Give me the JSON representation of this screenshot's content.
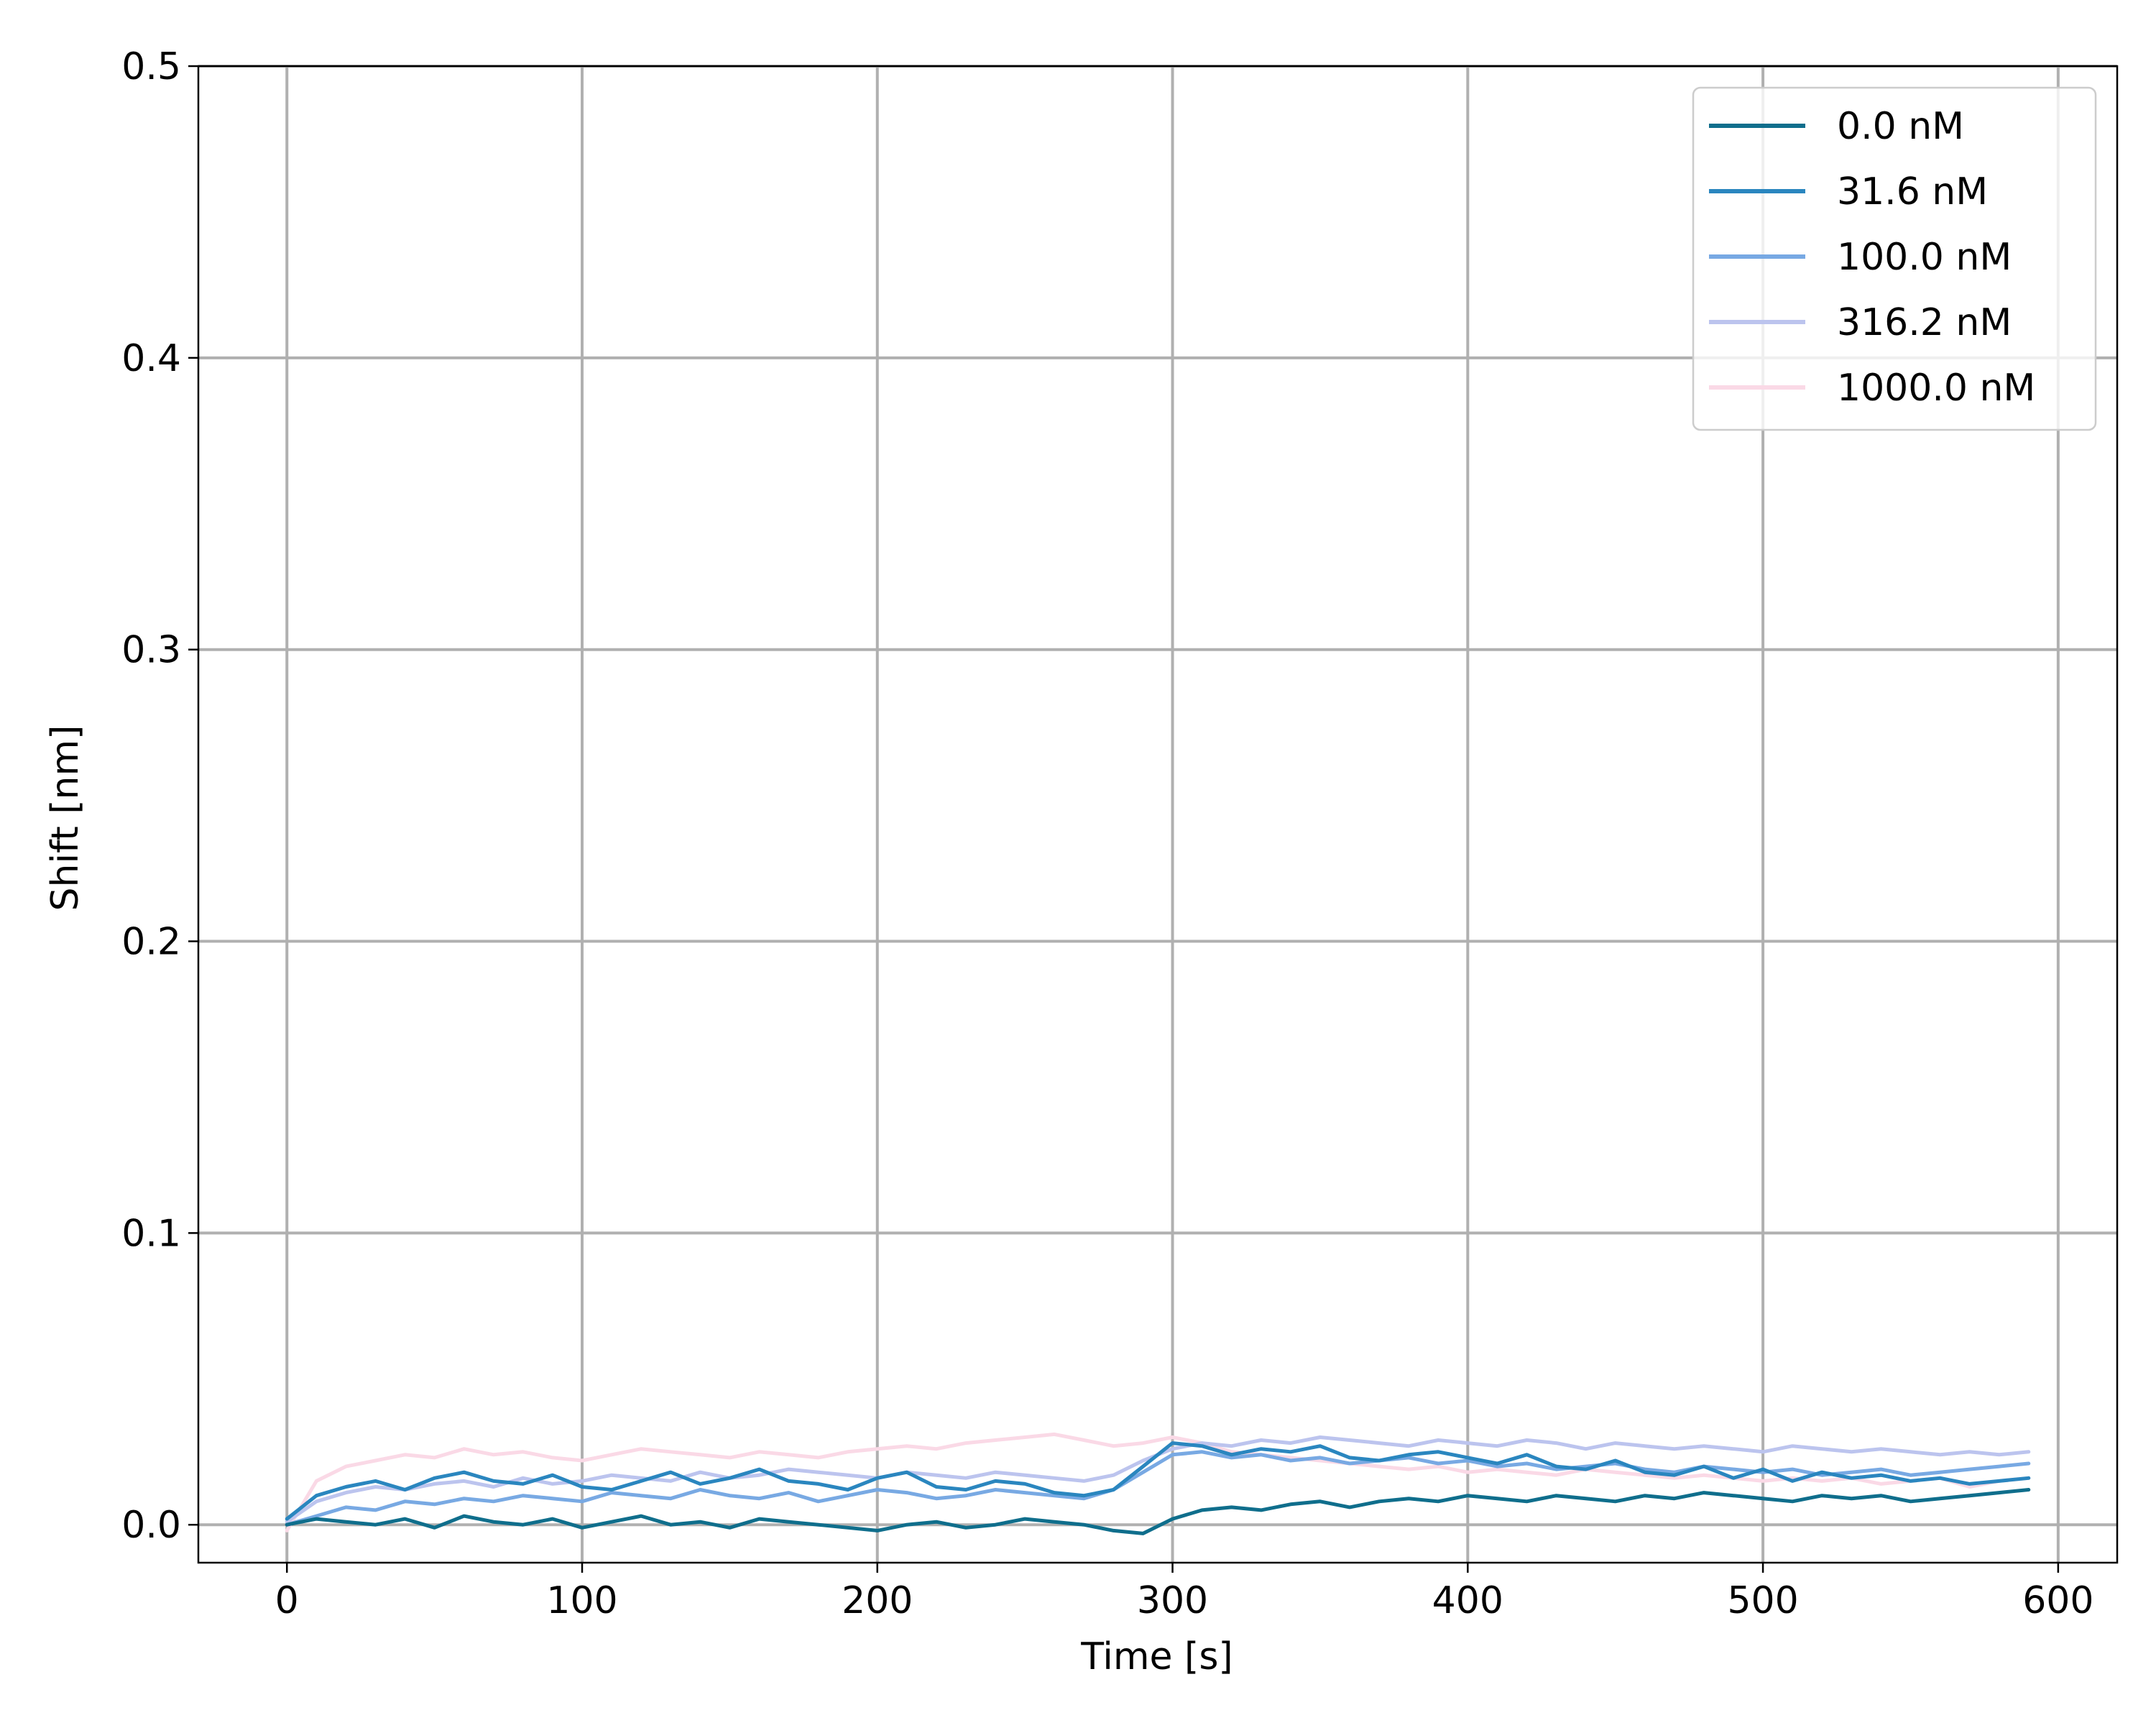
{
  "chart_data": {
    "type": "line",
    "title": "",
    "xlabel": "Time [s]",
    "ylabel": "Shift [nm]",
    "xlim": [
      -30,
      620
    ],
    "ylim": [
      -0.013,
      0.5
    ],
    "xticks": [
      0,
      100,
      200,
      300,
      400,
      500,
      600
    ],
    "xtick_labels": [
      "0",
      "100",
      "200",
      "300",
      "400",
      "500",
      "600"
    ],
    "yticks": [
      0.0,
      0.1,
      0.2,
      0.3,
      0.4,
      0.5
    ],
    "ytick_labels": [
      "0.0",
      "0.1",
      "0.2",
      "0.3",
      "0.4",
      "0.5"
    ],
    "grid": true,
    "legend_position": "top-right",
    "x": [
      0,
      10,
      20,
      30,
      40,
      50,
      60,
      70,
      80,
      90,
      100,
      110,
      120,
      130,
      140,
      150,
      160,
      170,
      180,
      190,
      200,
      210,
      220,
      230,
      240,
      250,
      260,
      270,
      280,
      290,
      300,
      310,
      320,
      330,
      340,
      350,
      360,
      370,
      380,
      390,
      400,
      410,
      420,
      430,
      440,
      450,
      460,
      470,
      480,
      490,
      500,
      510,
      520,
      530,
      540,
      550,
      560,
      570,
      580,
      590
    ],
    "series": [
      {
        "name": "0.0 nM",
        "color": "#0f6e8c",
        "values": [
          0.0,
          0.002,
          0.001,
          0.0,
          0.002,
          -0.001,
          0.003,
          0.001,
          0.0,
          0.002,
          -0.001,
          0.001,
          0.003,
          0.0,
          0.001,
          -0.001,
          0.002,
          0.001,
          0.0,
          -0.001,
          -0.002,
          0.0,
          0.001,
          -0.001,
          0.0,
          0.002,
          0.001,
          0.0,
          -0.002,
          -0.003,
          0.002,
          0.005,
          0.006,
          0.005,
          0.007,
          0.008,
          0.006,
          0.008,
          0.009,
          0.008,
          0.01,
          0.009,
          0.008,
          0.01,
          0.009,
          0.008,
          0.01,
          0.009,
          0.011,
          0.01,
          0.009,
          0.008,
          0.01,
          0.009,
          0.01,
          0.008,
          0.009,
          0.01,
          0.011,
          0.012
        ]
      },
      {
        "name": "31.6 nM",
        "color": "#2a86bf",
        "values": [
          0.002,
          0.01,
          0.013,
          0.015,
          0.012,
          0.016,
          0.018,
          0.015,
          0.014,
          0.017,
          0.013,
          0.012,
          0.015,
          0.018,
          0.014,
          0.016,
          0.019,
          0.015,
          0.014,
          0.012,
          0.016,
          0.018,
          0.013,
          0.012,
          0.015,
          0.014,
          0.011,
          0.01,
          0.012,
          0.02,
          0.028,
          0.027,
          0.024,
          0.026,
          0.025,
          0.027,
          0.023,
          0.022,
          0.024,
          0.025,
          0.023,
          0.021,
          0.024,
          0.02,
          0.019,
          0.022,
          0.018,
          0.017,
          0.02,
          0.016,
          0.019,
          0.015,
          0.018,
          0.016,
          0.017,
          0.015,
          0.016,
          0.014,
          0.015,
          0.016
        ]
      },
      {
        "name": "100.0 nM",
        "color": "#78a9e3",
        "values": [
          0.0,
          0.003,
          0.006,
          0.005,
          0.008,
          0.007,
          0.009,
          0.008,
          0.01,
          0.009,
          0.008,
          0.011,
          0.01,
          0.009,
          0.012,
          0.01,
          0.009,
          0.011,
          0.008,
          0.01,
          0.012,
          0.011,
          0.009,
          0.01,
          0.012,
          0.011,
          0.01,
          0.009,
          0.012,
          0.018,
          0.024,
          0.025,
          0.023,
          0.024,
          0.022,
          0.023,
          0.021,
          0.022,
          0.023,
          0.021,
          0.022,
          0.02,
          0.021,
          0.019,
          0.02,
          0.021,
          0.019,
          0.018,
          0.02,
          0.019,
          0.018,
          0.019,
          0.017,
          0.018,
          0.019,
          0.017,
          0.018,
          0.019,
          0.02,
          0.021
        ]
      },
      {
        "name": "316.2 nM",
        "color": "#bcc4ee",
        "values": [
          0.001,
          0.008,
          0.011,
          0.013,
          0.012,
          0.014,
          0.015,
          0.013,
          0.016,
          0.014,
          0.015,
          0.017,
          0.016,
          0.015,
          0.018,
          0.016,
          0.017,
          0.019,
          0.018,
          0.017,
          0.016,
          0.018,
          0.017,
          0.016,
          0.018,
          0.017,
          0.016,
          0.015,
          0.017,
          0.022,
          0.026,
          0.028,
          0.027,
          0.029,
          0.028,
          0.03,
          0.029,
          0.028,
          0.027,
          0.029,
          0.028,
          0.027,
          0.029,
          0.028,
          0.026,
          0.028,
          0.027,
          0.026,
          0.027,
          0.026,
          0.025,
          0.027,
          0.026,
          0.025,
          0.026,
          0.025,
          0.024,
          0.025,
          0.024,
          0.025
        ]
      },
      {
        "name": "1000.0 nM",
        "color": "#fad9e6",
        "values": [
          -0.002,
          0.015,
          0.02,
          0.022,
          0.024,
          0.023,
          0.026,
          0.024,
          0.025,
          0.023,
          0.022,
          0.024,
          0.026,
          0.025,
          0.024,
          0.023,
          0.025,
          0.024,
          0.023,
          0.025,
          0.026,
          0.027,
          0.026,
          0.028,
          0.029,
          0.03,
          0.031,
          0.029,
          0.027,
          0.028,
          0.03,
          0.028,
          0.025,
          0.024,
          0.023,
          0.022,
          0.021,
          0.02,
          0.019,
          0.02,
          0.018,
          0.019,
          0.018,
          0.017,
          0.019,
          0.018,
          0.017,
          0.016,
          0.017,
          0.016,
          0.015,
          0.016,
          0.015,
          0.016,
          0.014,
          0.015,
          0.016,
          0.013,
          0.015,
          0.016
        ]
      }
    ]
  }
}
